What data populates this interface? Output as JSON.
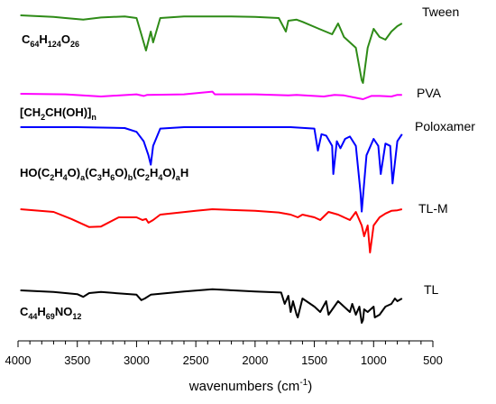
{
  "chart_data": {
    "type": "line",
    "xlabel": "wavenumbers (cm",
    "xlabel_superscript": "-1",
    "xlabel_close": ")",
    "x_reversed": true,
    "xlim": [
      4000,
      500
    ],
    "x_ticks": [
      "4000",
      "3500",
      "3000",
      "2500",
      "2000",
      "1500",
      "1000",
      "500"
    ],
    "y_ticks_shown": false,
    "grid": false,
    "series": [
      {
        "name": "Tween",
        "color": "#2e8b17",
        "formula": [
          {
            "t": "C"
          },
          {
            "t": "64",
            "sub": true
          },
          {
            "t": "H"
          },
          {
            "t": "124",
            "sub": true
          },
          {
            "t": "O"
          },
          {
            "t": "26",
            "sub": true
          }
        ],
        "x": [
          3980,
          3700,
          3600,
          3450,
          3300,
          3100,
          3000,
          2960,
          2920,
          2880,
          2860,
          2800,
          2600,
          2400,
          2200,
          2000,
          1800,
          1740,
          1720,
          1650,
          1600,
          1460,
          1350,
          1300,
          1250,
          1150,
          1100,
          1090,
          1050,
          1000,
          950,
          900,
          850,
          800,
          760
        ],
        "values": [
          0,
          -0.3,
          -0.5,
          -0.8,
          -0.4,
          -0.2,
          -0.5,
          -3.5,
          -6.5,
          -3,
          -5,
          -0.5,
          -0.2,
          -0.2,
          -0.2,
          -0.3,
          -0.5,
          -3,
          -1,
          -0.8,
          -1.2,
          -2.5,
          -3.5,
          -1.5,
          -4,
          -6,
          -12,
          -12.5,
          -6,
          -2.5,
          -4,
          -4.5,
          -3,
          -2,
          -1.5
        ]
      },
      {
        "name": "PVA",
        "color": "#ff00ff",
        "formula": [
          {
            "t": "[CH"
          },
          {
            "t": "2",
            "sub": true
          },
          {
            "t": "CH(OH)]"
          },
          {
            "t": "n",
            "sub": true
          }
        ],
        "x": [
          3980,
          3600,
          3300,
          3000,
          2940,
          2910,
          2600,
          2360,
          2340,
          2000,
          1720,
          1650,
          1420,
          1330,
          1250,
          1090,
          1020,
          950,
          850,
          800,
          760
        ],
        "values": [
          0,
          -0.1,
          -0.5,
          -0.1,
          -0.4,
          -0.2,
          -0.1,
          0.4,
          -0.1,
          -0.1,
          -0.3,
          -0.2,
          -0.5,
          -0.2,
          -0.3,
          -1,
          -0.4,
          -0.4,
          -0.5,
          -0.2,
          -0.2
        ]
      },
      {
        "name": "Poloxamer",
        "color": "#0000ff",
        "formula": [
          {
            "t": "HO(C"
          },
          {
            "t": "2",
            "sub": true
          },
          {
            "t": "H"
          },
          {
            "t": "4",
            "sub": true
          },
          {
            "t": "O)"
          },
          {
            "t": "a",
            "sub": true
          },
          {
            "t": "(C"
          },
          {
            "t": "3",
            "sub": true
          },
          {
            "t": "H"
          },
          {
            "t": "6",
            "sub": true
          },
          {
            "t": "O)"
          },
          {
            "t": "b",
            "sub": true
          },
          {
            "t": "(C"
          },
          {
            "t": "2",
            "sub": true
          },
          {
            "t": "H"
          },
          {
            "t": "4",
            "sub": true
          },
          {
            "t": "O)"
          },
          {
            "t": "a",
            "sub": true
          },
          {
            "t": "H"
          }
        ],
        "x": [
          3980,
          3500,
          3100,
          3000,
          2940,
          2900,
          2880,
          2860,
          2800,
          2600,
          2000,
          1700,
          1500,
          1470,
          1440,
          1400,
          1350,
          1340,
          1310,
          1280,
          1240,
          1200,
          1150,
          1110,
          1100,
          1060,
          1000,
          960,
          940,
          900,
          860,
          840,
          800,
          760
        ],
        "values": [
          0,
          0,
          -0.2,
          -1,
          -3,
          -6,
          -8,
          -4,
          -0.3,
          0,
          0,
          0,
          -0.3,
          -5,
          -1.5,
          -1.8,
          -4,
          -10,
          -3,
          -4.5,
          -2.5,
          -2,
          -4,
          -14,
          -18,
          -6,
          -2.5,
          -4,
          -10,
          -3.5,
          -4,
          -12,
          -3,
          -1.5
        ]
      },
      {
        "name": "TL-M",
        "color": "#ff0000",
        "formula": [],
        "x": [
          3980,
          3700,
          3550,
          3400,
          3300,
          3150,
          3000,
          2950,
          2920,
          2900,
          2860,
          2800,
          2500,
          2360,
          2000,
          1800,
          1700,
          1640,
          1600,
          1500,
          1450,
          1380,
          1300,
          1200,
          1150,
          1100,
          1080,
          1050,
          1030,
          1000,
          950,
          900,
          850,
          800,
          760
        ],
        "values": [
          0,
          -0.5,
          -1.8,
          -3.3,
          -3.2,
          -1.5,
          -1.5,
          -2,
          -1.8,
          -2.5,
          -2,
          -1,
          -0.3,
          0,
          -0.3,
          -0.6,
          -1,
          -1.5,
          -1,
          -1.5,
          -2,
          -0.5,
          -1,
          -2,
          -0.5,
          -3,
          -5,
          -3,
          -8,
          -3,
          -1.5,
          -0.8,
          -0.3,
          -0.2,
          0
        ]
      },
      {
        "name": "TL",
        "color": "#000000",
        "formula": [
          {
            "t": "C"
          },
          {
            "t": "44",
            "sub": true
          },
          {
            "t": "H"
          },
          {
            "t": "69",
            "sub": true
          },
          {
            "t": "NO"
          },
          {
            "t": "12",
            "sub": true
          }
        ],
        "x": [
          3980,
          3700,
          3500,
          3450,
          3400,
          3300,
          3000,
          2960,
          2930,
          2880,
          2600,
          2360,
          2000,
          1780,
          1750,
          1720,
          1700,
          1680,
          1650,
          1640,
          1600,
          1500,
          1450,
          1400,
          1380,
          1300,
          1200,
          1180,
          1150,
          1120,
          1100,
          1090,
          1080,
          1050,
          1000,
          990,
          950,
          900,
          850,
          820,
          800,
          760
        ],
        "values": [
          0,
          -0.3,
          -0.7,
          -1.2,
          -0.5,
          -0.3,
          -0.8,
          -1.8,
          -1.5,
          -0.8,
          -0.2,
          0.2,
          -0.2,
          -0.4,
          -2.5,
          -1,
          -4,
          -2,
          -4.5,
          -5,
          -1.5,
          -3,
          -4,
          -2,
          -4.5,
          -2,
          -4,
          -2.5,
          -4.5,
          -3,
          -6,
          -5.5,
          -3.5,
          -4,
          -3,
          -5,
          -4.5,
          -3,
          -2.5,
          -1.5,
          -2,
          -1.5
        ]
      }
    ]
  }
}
